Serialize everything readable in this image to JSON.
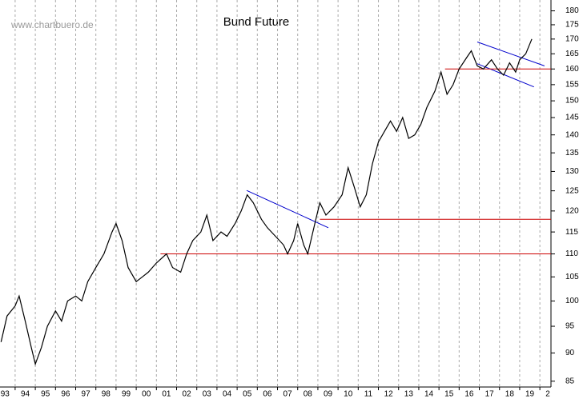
{
  "chart_data": {
    "type": "line",
    "title": "Bund Future",
    "watermark": "www.chartbuero.de",
    "x": [
      1993.3,
      1993.6,
      1994.0,
      1994.2,
      1994.5,
      1994.8,
      1995.0,
      1995.3,
      1995.6,
      1996.0,
      1996.3,
      1996.6,
      1997.0,
      1997.3,
      1997.6,
      1998.0,
      1998.4,
      1998.8,
      1999.0,
      1999.3,
      1999.6,
      2000.0,
      2000.3,
      2000.6,
      2001.0,
      2001.5,
      2001.8,
      2002.2,
      2002.5,
      2002.8,
      2003.2,
      2003.5,
      2003.8,
      2004.2,
      2004.5,
      2004.9,
      2005.2,
      2005.5,
      2005.8,
      2006.2,
      2006.5,
      2006.9,
      2007.3,
      2007.5,
      2007.8,
      2008.0,
      2008.3,
      2008.5,
      2008.9,
      2009.1,
      2009.4,
      2009.8,
      2010.2,
      2010.5,
      2010.8,
      2011.1,
      2011.4,
      2011.7,
      2012.0,
      2012.3,
      2012.6,
      2012.9,
      2013.2,
      2013.5,
      2013.8,
      2014.1,
      2014.4,
      2014.8,
      2015.1,
      2015.4,
      2015.7,
      2016.0,
      2016.4,
      2016.6,
      2016.9,
      2017.2,
      2017.6,
      2017.9,
      2018.2,
      2018.5,
      2018.8,
      2019.0,
      2019.3,
      2019.6
    ],
    "series": [
      {
        "color": "#000000",
        "values": [
          92,
          97,
          99,
          101,
          96,
          91,
          88,
          91,
          95,
          98,
          96,
          100,
          101,
          100,
          104,
          107,
          110,
          115,
          117,
          113,
          107,
          104,
          105,
          106,
          108,
          110,
          107,
          106,
          110,
          113,
          115,
          119,
          113,
          115,
          114,
          117,
          120,
          124,
          122,
          118,
          116,
          114,
          112,
          110,
          113,
          117,
          112,
          110,
          118,
          122,
          119,
          121,
          124,
          131,
          126,
          121,
          124,
          132,
          138,
          141,
          144,
          141,
          145,
          139,
          140,
          143,
          148,
          153,
          159,
          152,
          155,
          160,
          164,
          166,
          161,
          160,
          163,
          160,
          158,
          162,
          159,
          163,
          165,
          170
        ]
      }
    ],
    "lines": [
      {
        "color": "#0000cc",
        "x": [
          2005.47,
          2009.52
        ],
        "values": [
          125.1,
          116
        ]
      },
      {
        "color": "#0000cc",
        "x": [
          2016.9,
          2020.23
        ],
        "values": [
          169,
          161
        ]
      },
      {
        "color": "#0000cc",
        "x": [
          2016.9,
          2019.71
        ],
        "values": [
          161.7,
          154.3
        ]
      },
      {
        "color": "#cc0000",
        "x": [
          2001.2,
          2020.55
        ],
        "values": [
          110,
          110
        ]
      },
      {
        "color": "#cc0000",
        "x": [
          2009.1,
          2020.55
        ],
        "values": [
          118,
          118
        ]
      },
      {
        "color": "#cc0000",
        "x": [
          2015.3,
          2020.55
        ],
        "values": [
          160,
          160
        ]
      }
    ],
    "xlim": [
      1993.25,
      2020.55
    ],
    "xticks": [
      {
        "value": 1993,
        "label": "93"
      },
      {
        "value": 1994,
        "label": "94"
      },
      {
        "value": 1995,
        "label": "95"
      },
      {
        "value": 1996,
        "label": "96"
      },
      {
        "value": 1997,
        "label": "97"
      },
      {
        "value": 1998,
        "label": "98"
      },
      {
        "value": 1999,
        "label": "99"
      },
      {
        "value": 2000,
        "label": "00"
      },
      {
        "value": 2001,
        "label": "01"
      },
      {
        "value": 2002,
        "label": "02"
      },
      {
        "value": 2003,
        "label": "03"
      },
      {
        "value": 2004,
        "label": "04"
      },
      {
        "value": 2005,
        "label": "05"
      },
      {
        "value": 2006,
        "label": "06"
      },
      {
        "value": 2007,
        "label": "07"
      },
      {
        "value": 2008,
        "label": "08"
      },
      {
        "value": 2009,
        "label": "09"
      },
      {
        "value": 2010,
        "label": "10"
      },
      {
        "value": 2011,
        "label": "11"
      },
      {
        "value": 2012,
        "label": "12"
      },
      {
        "value": 2013,
        "label": "13"
      },
      {
        "value": 2014,
        "label": "14"
      },
      {
        "value": 2015,
        "label": "15"
      },
      {
        "value": 2016,
        "label": "16"
      },
      {
        "value": 2017,
        "label": "17"
      },
      {
        "value": 2018,
        "label": "18"
      },
      {
        "value": 2019,
        "label": "19"
      },
      {
        "value": 2020,
        "label": "2"
      }
    ],
    "ylim": [
      84,
      184
    ],
    "yticks": [
      85,
      90,
      95,
      100,
      105,
      110,
      115,
      120,
      125,
      130,
      135,
      140,
      145,
      150,
      155,
      160,
      165,
      170,
      175,
      180
    ],
    "log": true,
    "grid": true
  }
}
